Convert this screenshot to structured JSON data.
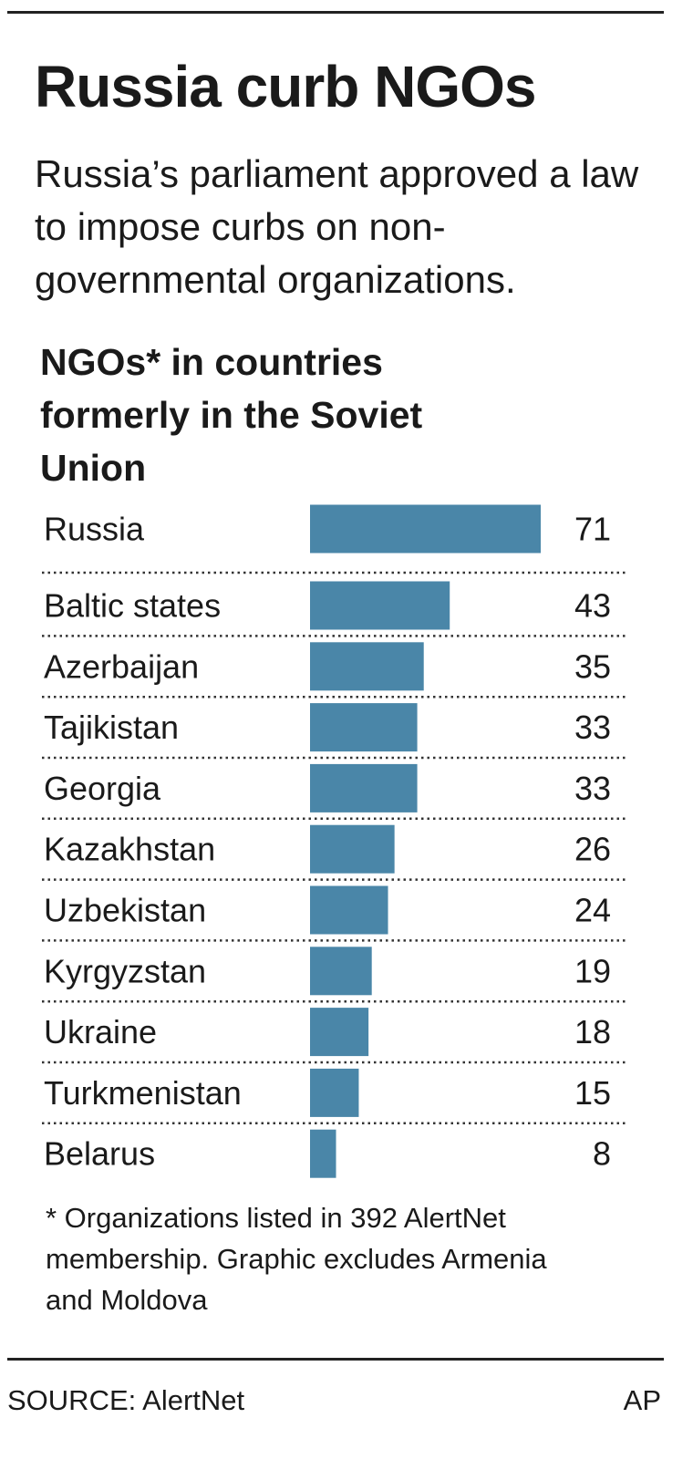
{
  "chart_data": {
    "type": "bar",
    "orientation": "horizontal",
    "title": "Russia curb NGOs",
    "subtitle": "Russia’s parliament approved a law to impose curbs on non-governmental organizations.",
    "chart_title": "NGOs* in countries formerly in the Soviet Union",
    "categories": [
      "Russia",
      "Baltic states",
      "Azerbaijan",
      "Tajikistan",
      "Georgia",
      "Kazakhstan",
      "Uzbekistan",
      "Kyrgyzstan",
      "Ukraine",
      "Turkmenistan",
      "Belarus"
    ],
    "values": [
      71,
      43,
      35,
      33,
      33,
      26,
      24,
      19,
      18,
      15,
      8
    ],
    "color": "#4a86a8",
    "footnote": "* Organizations listed in 392 AlertNet membership. Graphic excludes Armenia and Moldova",
    "source": "SOURCE: AlertNet",
    "credit": "AP"
  }
}
